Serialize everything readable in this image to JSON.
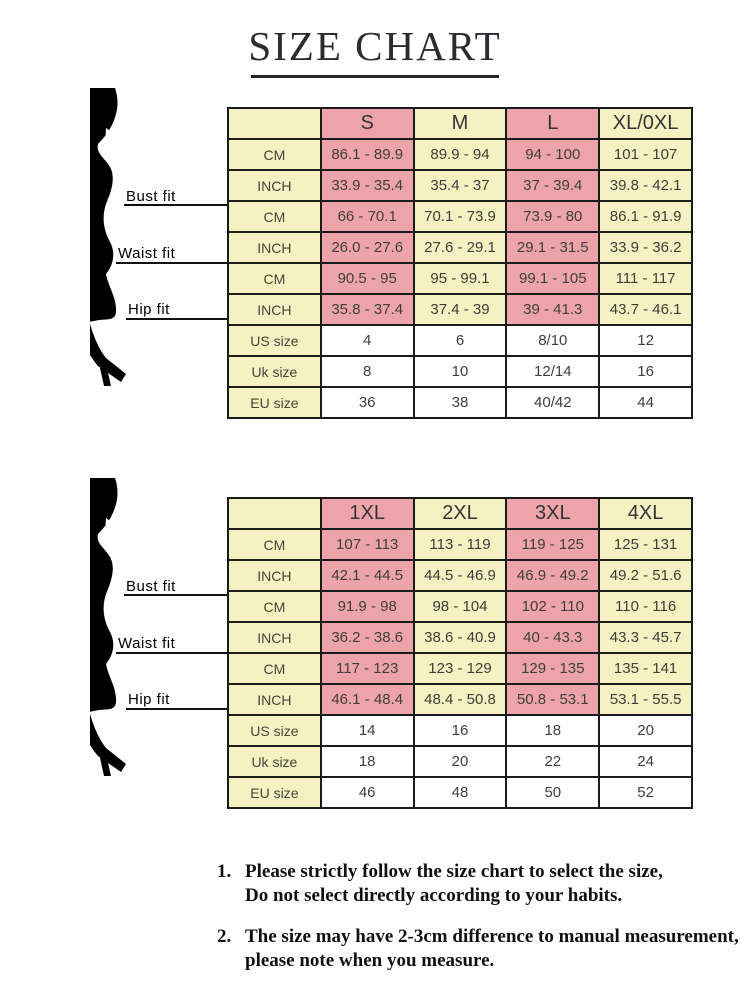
{
  "page": {
    "title": "SIZE CHART"
  },
  "colors": {
    "pink": "#ECA4AA",
    "cream": "#F5F1C2",
    "white": "#FFFFFF",
    "border": "#1B1B1B",
    "silhouette": "#000000"
  },
  "figure": {
    "bust_label": "Bust fit",
    "waist_label": "Waist fit",
    "hip_label": "Hip fit"
  },
  "tables": [
    {
      "id": "regular-sizes",
      "columns": [
        "",
        "S",
        "M",
        "L",
        "XL/0XL"
      ],
      "rows": [
        {
          "label": "CM",
          "section": "bust",
          "values": [
            "86.1 - 89.9",
            "89.9 - 94",
            "94 - 100",
            "101 - 107"
          ]
        },
        {
          "label": "INCH",
          "section": "bust",
          "values": [
            "33.9 - 35.4",
            "35.4 - 37",
            "37 - 39.4",
            "39.8 - 42.1"
          ]
        },
        {
          "label": "CM",
          "section": "waist",
          "values": [
            "66 - 70.1",
            "70.1 - 73.9",
            "73.9 - 80",
            "86.1 - 91.9"
          ]
        },
        {
          "label": "INCH",
          "section": "waist",
          "values": [
            "26.0 - 27.6",
            "27.6 - 29.1",
            "29.1 - 31.5",
            "33.9 - 36.2"
          ]
        },
        {
          "label": "CM",
          "section": "hip",
          "values": [
            "90.5 - 95",
            "95 - 99.1",
            "99.1 - 105",
            "111 - 117"
          ]
        },
        {
          "label": "INCH",
          "section": "hip",
          "values": [
            "35.8 - 37.4",
            "37.4 - 39",
            "39 - 41.3",
            "43.7 - 46.1"
          ]
        },
        {
          "label": "US size",
          "section": "sizes",
          "values": [
            "4",
            "6",
            "8/10",
            "12"
          ]
        },
        {
          "label": "Uk size",
          "section": "sizes",
          "values": [
            "8",
            "10",
            "12/14",
            "16"
          ]
        },
        {
          "label": "EU size",
          "section": "sizes",
          "values": [
            "36",
            "38",
            "40/42",
            "44"
          ]
        }
      ]
    },
    {
      "id": "plus-sizes",
      "columns": [
        "",
        "1XL",
        "2XL",
        "3XL",
        "4XL"
      ],
      "rows": [
        {
          "label": "CM",
          "section": "bust",
          "values": [
            "107 - 113",
            "113 - 119",
            "119 - 125",
            "125 - 131"
          ]
        },
        {
          "label": "INCH",
          "section": "bust",
          "values": [
            "42.1 - 44.5",
            "44.5 - 46.9",
            "46.9 - 49.2",
            "49.2 - 51.6"
          ]
        },
        {
          "label": "CM",
          "section": "waist",
          "values": [
            "91.9 - 98",
            "98 - 104",
            "102 - 110",
            "110 - 116"
          ]
        },
        {
          "label": "INCH",
          "section": "waist",
          "values": [
            "36.2 - 38.6",
            "38.6 - 40.9",
            "40 - 43.3",
            "43.3 - 45.7"
          ]
        },
        {
          "label": "CM",
          "section": "hip",
          "values": [
            "117 - 123",
            "123 - 129",
            "129 - 135",
            "135 - 141"
          ]
        },
        {
          "label": "INCH",
          "section": "hip",
          "values": [
            "46.1 - 48.4",
            "48.4 - 50.8",
            "50.8 - 53.1",
            "53.1 - 55.5"
          ]
        },
        {
          "label": "US size",
          "section": "sizes",
          "values": [
            "14",
            "16",
            "18",
            "20"
          ]
        },
        {
          "label": "Uk size",
          "section": "sizes",
          "values": [
            "18",
            "20",
            "22",
            "24"
          ]
        },
        {
          "label": "EU size",
          "section": "sizes",
          "values": [
            "46",
            "48",
            "50",
            "52"
          ]
        }
      ]
    }
  ],
  "notes": [
    {
      "num": "1.",
      "line1": "Please strictly follow the size chart to select the size,",
      "line2": "Do not select directly according to your habits."
    },
    {
      "num": "2.",
      "line1": "The size may have 2-3cm difference  to manual measurement,",
      "line2": "please note when you measure."
    }
  ]
}
